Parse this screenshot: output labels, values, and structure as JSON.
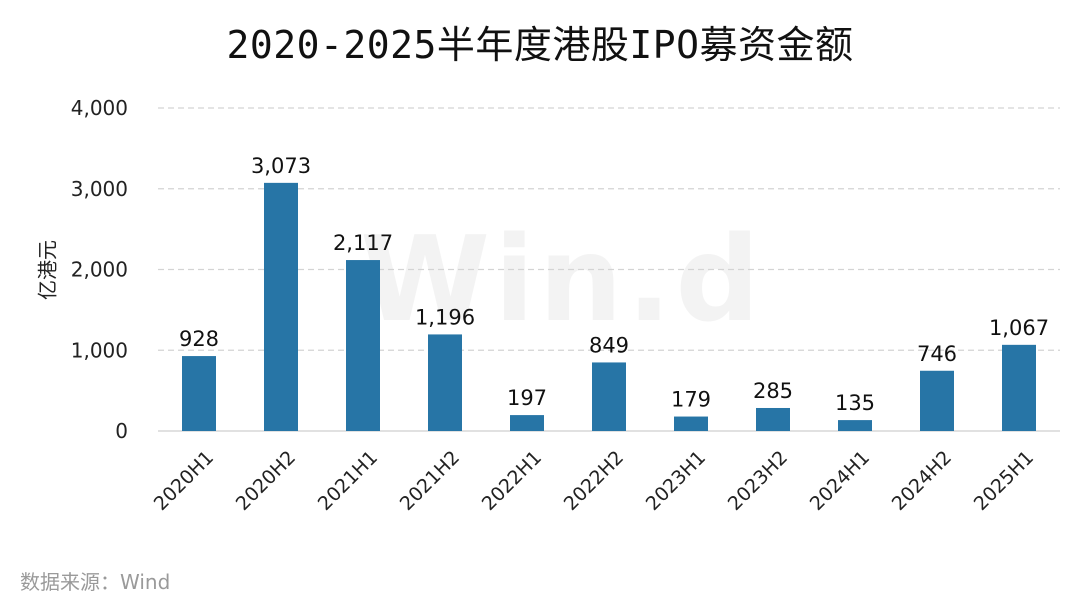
{
  "chart_data": {
    "type": "bar",
    "title": "2020-2025半年度港股IPO募资金额",
    "xlabel": "",
    "ylabel": "亿港元",
    "categories": [
      "2020H1",
      "2020H2",
      "2021H1",
      "2021H2",
      "2022H1",
      "2022H2",
      "2023H1",
      "2023H2",
      "2024H1",
      "2024H2",
      "2025H1"
    ],
    "values": [
      928,
      3073,
      2117,
      1196,
      197,
      849,
      179,
      285,
      135,
      746,
      1067
    ],
    "value_labels": [
      "928",
      "3,073",
      "2,117",
      "1,196",
      "197",
      "849",
      "179",
      "285",
      "135",
      "746",
      "1,067"
    ],
    "ylim": [
      0,
      4000
    ],
    "yticks": [
      0,
      1000,
      2000,
      3000,
      4000
    ],
    "ytick_labels": [
      "0",
      "1,000",
      "2,000",
      "3,000",
      "4,000"
    ],
    "grid": true,
    "legend": "none",
    "bar_color": "#2775a6"
  },
  "source": "数据来源：Wind",
  "watermark": "Win.d"
}
